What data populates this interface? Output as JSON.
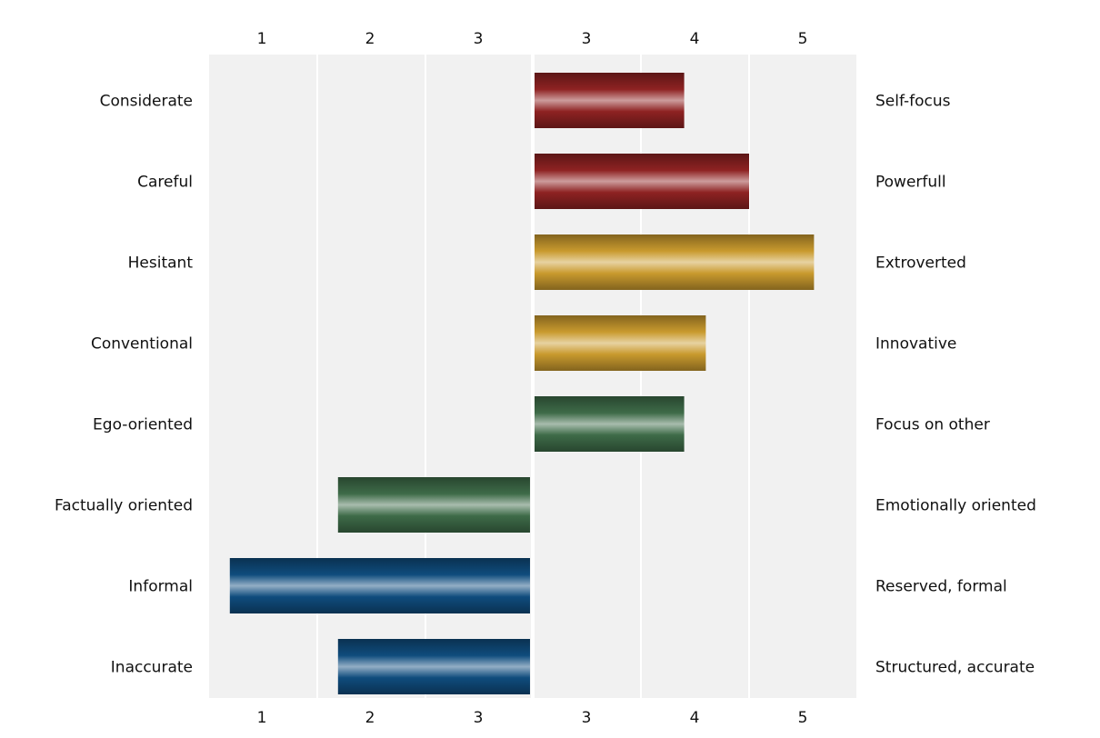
{
  "chart_data": {
    "type": "bar",
    "orientation": "horizontal",
    "subtype": "bipolar",
    "left_categories": [
      "Considerate",
      "Careful",
      "Hesitant",
      "Conventional",
      "Ego-oriented",
      "Factually oriented",
      "Informal",
      "Inaccurate"
    ],
    "right_categories": [
      "Self-focus",
      "Powerfull",
      "Extroverted",
      "Innovative",
      "Focus on other",
      "Emotionally oriented",
      "Reserved, formal",
      "Structured, accurate"
    ],
    "tick_labels": [
      "1",
      "2",
      "3",
      "3",
      "4",
      "5"
    ],
    "values": [
      {
        "side": "right",
        "score": 3.9
      },
      {
        "side": "right",
        "score": 4.5
      },
      {
        "side": "right",
        "score": 5.1
      },
      {
        "side": "right",
        "score": 4.1
      },
      {
        "side": "right",
        "score": 3.9
      },
      {
        "side": "left",
        "score": 1.7
      },
      {
        "side": "left",
        "score": 0.7
      },
      {
        "side": "left",
        "score": 1.7
      }
    ],
    "bar_colors": [
      "#8e2222",
      "#8e2222",
      "#c99a2e",
      "#c99a2e",
      "#3e6b48",
      "#3e6b48",
      "#0f4c7d",
      "#0f4c7d"
    ],
    "grid": true,
    "legend": "none"
  }
}
